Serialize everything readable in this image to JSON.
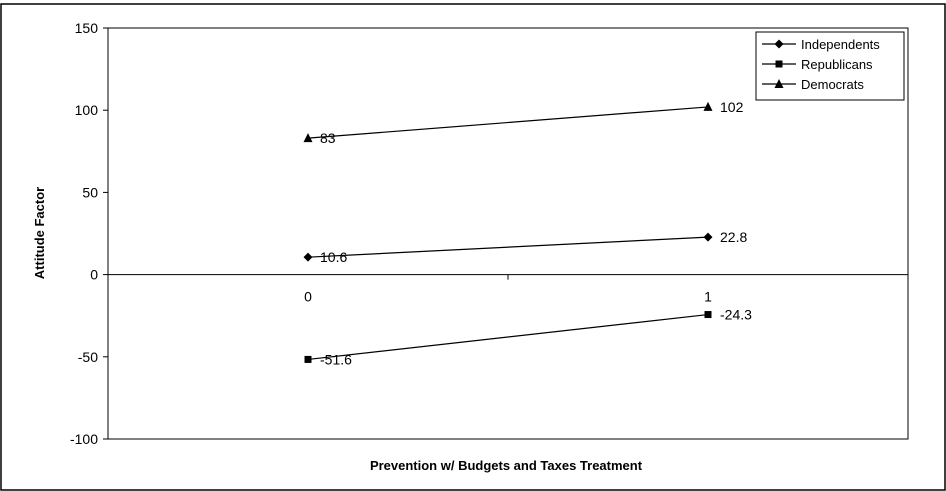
{
  "chart_data": {
    "type": "line",
    "x": [
      "0",
      "1"
    ],
    "xlabel": "Prevention w/ Budgets and Taxes Treatment",
    "ylabel": "Attitude Factor",
    "ylim": [
      -100,
      150
    ],
    "yticks": [
      150,
      100,
      50,
      0,
      -50,
      -100
    ],
    "grid": false,
    "legend_position": "top-right",
    "series": [
      {
        "name": "Independents",
        "marker": "diamond",
        "values": [
          10.6,
          22.8
        ],
        "labels": [
          "10.6",
          "22.8"
        ]
      },
      {
        "name": "Republicans",
        "marker": "square",
        "values": [
          -51.6,
          -24.3
        ],
        "labels": [
          "-51.6",
          "-24.3"
        ]
      },
      {
        "name": "Democrats",
        "marker": "triangle",
        "values": [
          83,
          102
        ],
        "labels": [
          "83",
          "102"
        ]
      }
    ]
  }
}
